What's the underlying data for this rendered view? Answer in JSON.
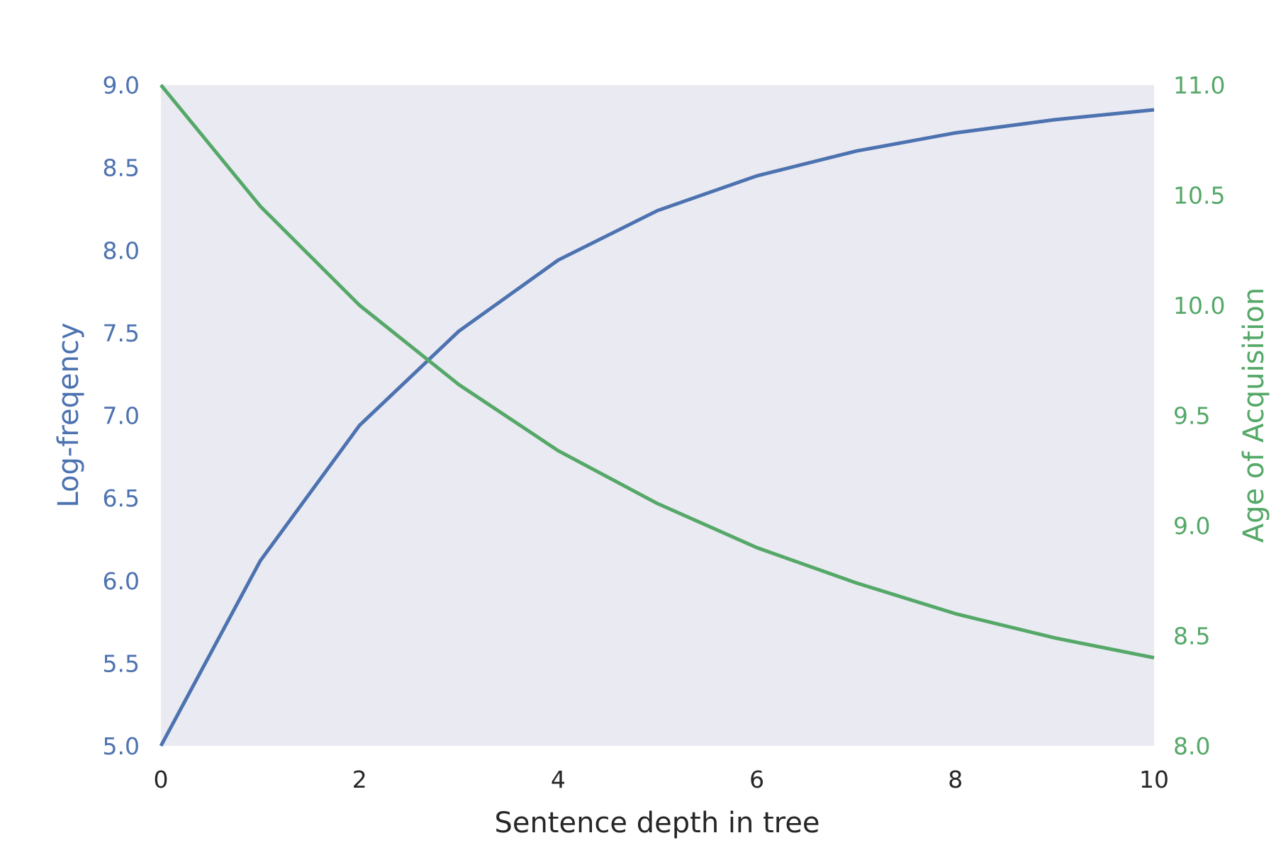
{
  "chart_data": {
    "type": "line",
    "title": "",
    "xlabel": "Sentence depth in tree",
    "ylabel_left": "Log-freqency",
    "ylabel_right": "Age of Acquisition",
    "xlim": [
      0,
      10
    ],
    "ylim_left": [
      5.0,
      9.0
    ],
    "ylim_right": [
      8.0,
      11.0
    ],
    "x_ticks": [
      "0",
      "2",
      "4",
      "6",
      "8",
      "10"
    ],
    "y_left_ticks": [
      "5.0",
      "5.5",
      "6.0",
      "6.5",
      "7.0",
      "7.5",
      "8.0",
      "8.5",
      "9.0"
    ],
    "y_right_ticks": [
      "8.0",
      "8.5",
      "9.0",
      "9.5",
      "10.0",
      "10.5",
      "11.0"
    ],
    "grid": false,
    "colors": {
      "plot_background": "#eaeaf2",
      "left_axis": "#4c72b0",
      "right_axis": "#55a868",
      "x_axis": "#262626"
    },
    "series": [
      {
        "axis": "left",
        "color": "#4c72b0",
        "x": [
          0,
          1,
          2,
          3,
          4,
          5,
          6,
          7,
          8,
          9,
          10
        ],
        "values": [
          5.0,
          6.12,
          6.94,
          7.51,
          7.94,
          8.24,
          8.45,
          8.6,
          8.71,
          8.79,
          8.85
        ]
      },
      {
        "axis": "right",
        "color": "#55a868",
        "x": [
          0,
          1,
          2,
          3,
          4,
          5,
          6,
          7,
          8,
          9,
          10
        ],
        "values": [
          11.0,
          10.45,
          10.0,
          9.64,
          9.34,
          9.1,
          8.9,
          8.74,
          8.6,
          8.49,
          8.4
        ]
      }
    ]
  }
}
